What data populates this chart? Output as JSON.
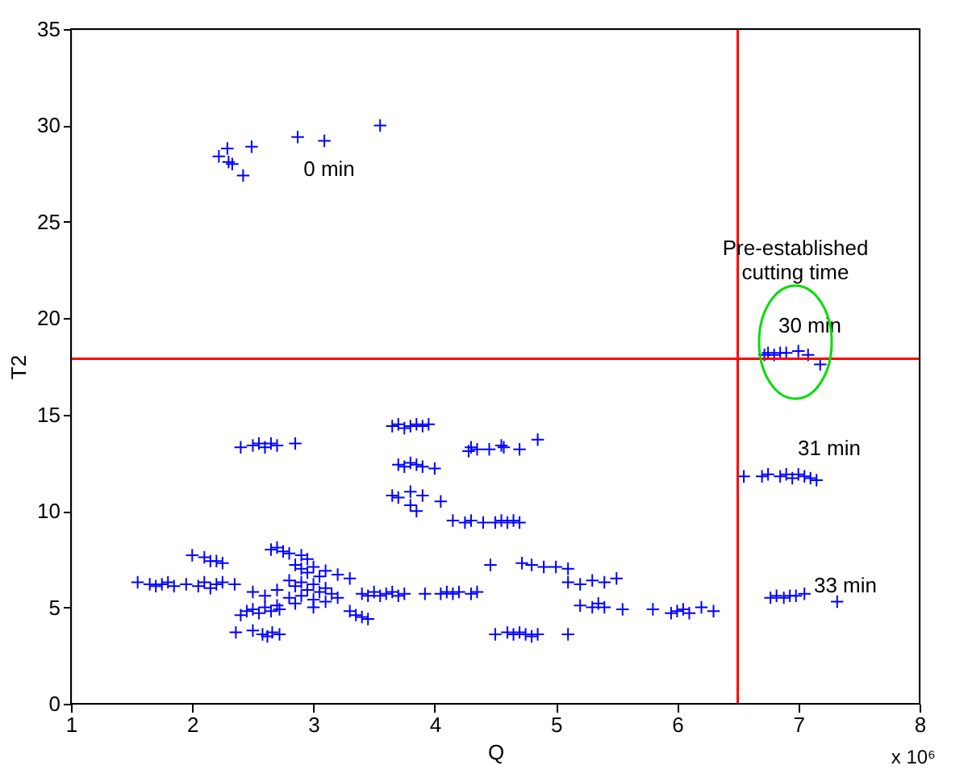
{
  "chart_data": {
    "type": "scatter",
    "xlabel": "Q",
    "ylabel": "T2",
    "xlim": [
      1,
      8
    ],
    "xticks": [
      1,
      2,
      3,
      4,
      5,
      6,
      7,
      8
    ],
    "ylim": [
      0,
      35
    ],
    "yticks": [
      0,
      5,
      10,
      15,
      20,
      25,
      30,
      35
    ],
    "grid": false,
    "legend": false,
    "marker": "cross",
    "series": [
      {
        "color": "#0000ff",
        "x": [
          2.22,
          2.29,
          2.3,
          2.33,
          2.49,
          2.42,
          2.87,
          3.09,
          3.55,
          2.4,
          2.5,
          2.55,
          2.6,
          2.65,
          2.7,
          2.85,
          3.65,
          3.7,
          3.75,
          3.8,
          3.85,
          3.9,
          3.95,
          3.7,
          3.75,
          3.8,
          3.85,
          3.9,
          4.0,
          3.65,
          3.7,
          3.8,
          3.9,
          4.05,
          3.8,
          3.85,
          2.0,
          2.1,
          2.15,
          2.2,
          2.25,
          1.55,
          1.65,
          1.7,
          1.75,
          1.8,
          1.85,
          1.95,
          2.05,
          2.1,
          2.15,
          2.2,
          2.25,
          2.35,
          2.65,
          2.7,
          2.75,
          2.8,
          2.9,
          2.95,
          2.85,
          2.9,
          2.95,
          3.0,
          3.05,
          3.1,
          3.2,
          3.3,
          2.8,
          2.85,
          2.9,
          2.95,
          3.0,
          3.05,
          3.1,
          3.15,
          2.8,
          2.9,
          3.0,
          3.1,
          3.2,
          2.7,
          2.6,
          2.5,
          3.0,
          2.85,
          2.7,
          2.4,
          2.45,
          2.5,
          2.55,
          2.6,
          2.65,
          2.72,
          2.36,
          2.5,
          2.58,
          2.62,
          2.66,
          2.72,
          3.4,
          3.45,
          3.5,
          3.55,
          3.6,
          3.65,
          3.7,
          3.75,
          3.92,
          3.3,
          3.35,
          3.4,
          3.45,
          4.05,
          4.1,
          4.15,
          4.2,
          4.3,
          4.35,
          4.28,
          4.3,
          4.35,
          4.45,
          4.55,
          4.57,
          4.7,
          4.85,
          4.15,
          4.25,
          4.3,
          4.4,
          4.5,
          4.55,
          4.6,
          4.65,
          4.7,
          4.46,
          4.72,
          4.8,
          4.9,
          5.0,
          5.1,
          5.1,
          5.2,
          5.3,
          5.4,
          5.5,
          5.2,
          5.3,
          5.35,
          5.4,
          5.55,
          4.5,
          4.6,
          4.65,
          4.7,
          4.75,
          4.8,
          4.85,
          5.1,
          5.8,
          5.95,
          6.0,
          6.05,
          6.1,
          6.2,
          6.3,
          6.55,
          6.7,
          6.75,
          6.85,
          6.9,
          6.95,
          7.0,
          7.05,
          7.1,
          7.15,
          6.77,
          6.82,
          6.88,
          6.93,
          6.98,
          7.05,
          7.32,
          6.72,
          6.75,
          6.8,
          6.85,
          6.9,
          7.0,
          7.08,
          7.18
        ],
        "values": [
          28.4,
          28.8,
          28.1,
          28.0,
          28.9,
          27.4,
          29.4,
          29.2,
          30.0,
          13.3,
          13.4,
          13.5,
          13.3,
          13.5,
          13.4,
          13.5,
          14.4,
          14.5,
          14.3,
          14.4,
          14.5,
          14.4,
          14.5,
          12.4,
          12.3,
          12.5,
          12.4,
          12.3,
          12.2,
          10.8,
          10.7,
          11.0,
          10.8,
          10.5,
          10.3,
          10.0,
          7.7,
          7.6,
          7.4,
          7.4,
          7.3,
          6.3,
          6.2,
          6.1,
          6.2,
          6.3,
          6.1,
          6.2,
          6.1,
          6.3,
          6.0,
          6.2,
          6.3,
          6.2,
          8.0,
          8.1,
          7.9,
          7.8,
          7.7,
          7.5,
          7.2,
          7.0,
          6.8,
          7.1,
          6.6,
          6.9,
          6.7,
          6.5,
          6.4,
          6.1,
          6.3,
          5.9,
          6.2,
          5.8,
          6.0,
          5.7,
          5.5,
          5.6,
          5.4,
          5.3,
          5.5,
          5.9,
          5.6,
          5.8,
          5.0,
          5.2,
          5.1,
          4.6,
          4.8,
          4.9,
          4.7,
          5.0,
          4.8,
          4.9,
          3.7,
          3.8,
          3.6,
          3.5,
          3.7,
          3.6,
          5.7,
          5.6,
          5.8,
          5.6,
          5.7,
          5.8,
          5.6,
          5.7,
          5.7,
          4.8,
          4.6,
          4.5,
          4.4,
          5.7,
          5.8,
          5.7,
          5.8,
          5.7,
          5.8,
          13.1,
          13.3,
          13.2,
          13.2,
          13.4,
          13.3,
          13.2,
          13.7,
          9.5,
          9.4,
          9.5,
          9.4,
          9.4,
          9.5,
          9.4,
          9.5,
          9.4,
          7.2,
          7.3,
          7.2,
          7.1,
          7.1,
          7.0,
          6.3,
          6.2,
          6.4,
          6.3,
          6.5,
          5.1,
          5.0,
          5.2,
          5.0,
          4.9,
          3.6,
          3.7,
          3.6,
          3.7,
          3.6,
          3.5,
          3.6,
          3.6,
          4.9,
          4.7,
          4.8,
          4.9,
          4.7,
          5.0,
          4.8,
          11.8,
          11.8,
          11.9,
          11.8,
          11.9,
          11.7,
          11.9,
          11.8,
          11.7,
          11.6,
          5.5,
          5.6,
          5.5,
          5.6,
          5.6,
          5.7,
          5.3,
          18.1,
          18.2,
          18.1,
          18.2,
          18.2,
          18.3,
          18.1,
          17.6
        ]
      }
    ],
    "ref_lines": [
      {
        "axis": "x",
        "value": 6.5,
        "color": "#ff0000"
      },
      {
        "axis": "y",
        "value": 17.9,
        "color": "#ff0000"
      }
    ],
    "annotations": [
      "0 min",
      "Pre-established\ncutting time",
      "30 min",
      "31 min",
      "33 min",
      "x 10⁶"
    ]
  }
}
